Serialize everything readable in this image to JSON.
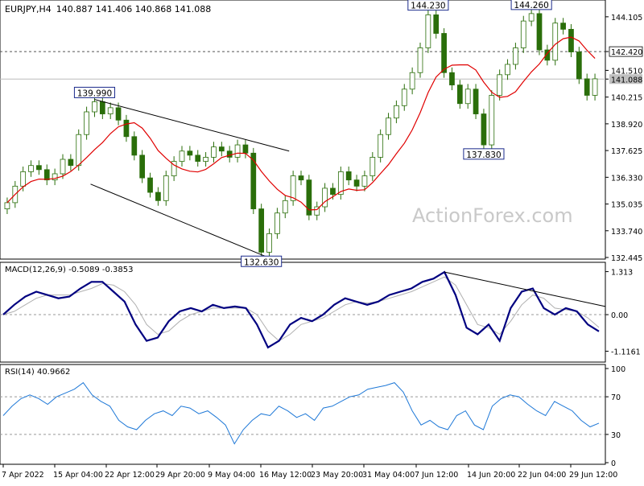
{
  "chart_data": [
    {
      "type": "candlestick",
      "title": "EURJPY,H4",
      "ohlc": "140.887 141.406 140.868 141.088",
      "yticks": [
        "144.105",
        "142.420",
        "141.510",
        "141.088",
        "140.215",
        "138.920",
        "137.625",
        "136.330",
        "135.035",
        "133.740",
        "132.445"
      ],
      "ylim": [
        132.445,
        144.84
      ],
      "current_price": "141.088",
      "hline_level": "142.420",
      "xlabels": [
        "7 Apr 2022",
        "15 Apr 04:00",
        "22 Apr 12:00",
        "29 Apr 20:00",
        "9 May 04:00",
        "16 May 12:00",
        "23 May 20:00",
        "31 May 04:00",
        "7 Jun 12:00",
        "14 Jun 20:00",
        "22 Jun 04:00",
        "29 Jun 12:00"
      ],
      "annotations": [
        "139.990",
        "132.630",
        "144.230",
        "137.830",
        "144.260"
      ],
      "watermark": "ActionForex.com",
      "colors": {
        "candle": "#2a6e0a",
        "ma": "#e00000"
      },
      "closes": [
        135.1,
        135.9,
        136.6,
        136.9,
        136.7,
        136.2,
        136.5,
        137.2,
        136.9,
        138.4,
        139.5,
        139.99,
        139.4,
        139.7,
        139.1,
        138.3,
        137.4,
        136.3,
        135.6,
        135.2,
        136.4,
        137.1,
        137.6,
        137.4,
        137.1,
        137.3,
        137.8,
        137.6,
        137.3,
        137.9,
        137.5,
        134.8,
        132.7,
        133.6,
        134.6,
        135.2,
        136.4,
        136.2,
        134.5,
        134.9,
        135.8,
        135.5,
        136.6,
        136.2,
        135.9,
        136.4,
        137.3,
        138.4,
        139.2,
        139.8,
        140.6,
        141.4,
        142.6,
        144.2,
        143.3,
        141.4,
        140.8,
        139.9,
        140.6,
        139.4,
        137.9,
        140.3,
        141.3,
        141.8,
        142.6,
        143.9,
        144.26,
        142.5,
        142.0,
        143.8,
        143.5,
        142.4,
        141.1,
        140.3,
        141.1
      ]
    },
    {
      "type": "line",
      "title": "MACD(12,26,9) -0.5089 -0.3853",
      "yticks": [
        "1.313",
        "0.00",
        "-1.1161"
      ],
      "ylim": [
        -1.35,
        1.45
      ],
      "series": [
        {
          "values": [
            0.0,
            0.3,
            0.55,
            0.7,
            0.6,
            0.5,
            0.55,
            0.8,
            1.0,
            1.0,
            0.7,
            0.4,
            -0.3,
            -0.8,
            -0.7,
            -0.2,
            0.1,
            0.2,
            0.1,
            0.3,
            0.2,
            0.25,
            0.2,
            -0.3,
            -1.0,
            -0.8,
            -0.3,
            -0.1,
            -0.2,
            0.0,
            0.3,
            0.5,
            0.4,
            0.3,
            0.4,
            0.6,
            0.7,
            0.8,
            1.0,
            1.1,
            1.3,
            0.6,
            -0.4,
            -0.6,
            -0.3,
            -0.8,
            0.2,
            0.7,
            0.8,
            0.2,
            0.0,
            0.2,
            0.1,
            -0.3,
            -0.51
          ]
        },
        {
          "values": [
            0.0,
            0.1,
            0.3,
            0.5,
            0.6,
            0.6,
            0.6,
            0.7,
            0.8,
            0.95,
            0.9,
            0.7,
            0.3,
            -0.3,
            -0.6,
            -0.5,
            -0.2,
            0.0,
            0.1,
            0.2,
            0.2,
            0.2,
            0.2,
            0.0,
            -0.5,
            -0.8,
            -0.6,
            -0.3,
            -0.2,
            -0.1,
            0.1,
            0.3,
            0.4,
            0.35,
            0.4,
            0.5,
            0.6,
            0.7,
            0.85,
            1.0,
            1.15,
            0.9,
            0.3,
            -0.3,
            -0.4,
            -0.6,
            -0.2,
            0.3,
            0.6,
            0.5,
            0.2,
            0.15,
            0.1,
            -0.1,
            -0.39
          ]
        }
      ],
      "colors": [
        "#000080",
        "#b0b0b0"
      ]
    },
    {
      "type": "line",
      "title": "RSI(14) 40.9662",
      "yticks": [
        "100",
        "70",
        "30",
        "0"
      ],
      "ylim": [
        0,
        100
      ],
      "series": [
        {
          "values": [
            50,
            60,
            68,
            72,
            68,
            62,
            70,
            74,
            78,
            85,
            72,
            65,
            60,
            45,
            38,
            35,
            45,
            52,
            55,
            50,
            60,
            58,
            52,
            55,
            48,
            40,
            20,
            35,
            45,
            52,
            50,
            60,
            55,
            48,
            52,
            45,
            58,
            60,
            65,
            70,
            72,
            78,
            80,
            82,
            85,
            75,
            55,
            40,
            45,
            38,
            35,
            50,
            55,
            40,
            35,
            60,
            68,
            72,
            70,
            62,
            55,
            50,
            65,
            60,
            55,
            45,
            38,
            42
          ]
        }
      ],
      "colors": [
        "#1e78d7"
      ]
    }
  ]
}
